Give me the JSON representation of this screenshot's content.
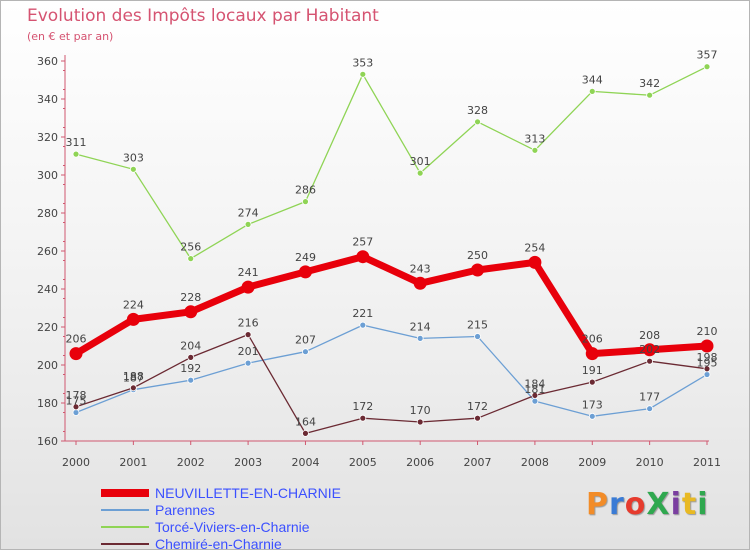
{
  "page": {
    "title": "Evolution des Impôts locaux par Habitant",
    "subtitle": "(en € et par an)",
    "logo": "ProXiti",
    "logo_colors": [
      "#f28c28",
      "#3a7bd5",
      "#e63b2e",
      "#2fa84f",
      "#7a3fa0",
      "#e8b923",
      "#2fa84f"
    ]
  },
  "chart_data": {
    "type": "line",
    "title": "Evolution des Impôts locaux par Habitant",
    "subtitle": "(en € et par an)",
    "xlabel": "",
    "ylabel": "",
    "x": [
      "2000",
      "2001",
      "2002",
      "2003",
      "2004",
      "2005",
      "2006",
      "2007",
      "2008",
      "2009",
      "2010",
      "2011"
    ],
    "ylim": [
      160,
      360
    ],
    "yticks": [
      160,
      180,
      200,
      220,
      240,
      260,
      280,
      300,
      320,
      340,
      360
    ],
    "grid": false,
    "legend_position": "bottom-left",
    "series": [
      {
        "name": "NEUVILLETTE-EN-CHARNIE",
        "color": "#e8000b",
        "highlight": true,
        "values": [
          206,
          224,
          228,
          241,
          249,
          257,
          243,
          250,
          254,
          206,
          208,
          210
        ]
      },
      {
        "name": "Parennes",
        "color": "#6c9fd4",
        "highlight": false,
        "values": [
          175,
          187,
          192,
          201,
          207,
          221,
          214,
          215,
          181,
          173,
          177,
          195
        ]
      },
      {
        "name": "Torcé-Viviers-en-Charnie",
        "color": "#8fd455",
        "highlight": false,
        "values": [
          311,
          303,
          256,
          274,
          286,
          353,
          301,
          328,
          313,
          344,
          342,
          357
        ]
      },
      {
        "name": "Chemiré-en-Charnie",
        "color": "#6b2a33",
        "highlight": false,
        "values": [
          178,
          188,
          204,
          216,
          164,
          172,
          170,
          172,
          184,
          191,
          202,
          198
        ]
      }
    ],
    "data_labels": [
      [
        "206",
        "224",
        "228",
        "241",
        "249",
        "257",
        "243",
        "250",
        "254",
        "206",
        "208",
        "210"
      ],
      [
        "175",
        "187",
        "192",
        "201",
        "207",
        "221",
        "214",
        "215",
        "181",
        "173",
        "177",
        "195"
      ],
      [
        "311",
        "303",
        "256",
        "274",
        "286",
        "353",
        "301",
        "328",
        "313",
        "344",
        "342",
        "357"
      ],
      [
        "178",
        "188",
        "204",
        "216",
        "164",
        "172",
        "170",
        "172",
        "184",
        "191",
        "202",
        "198"
      ]
    ]
  }
}
